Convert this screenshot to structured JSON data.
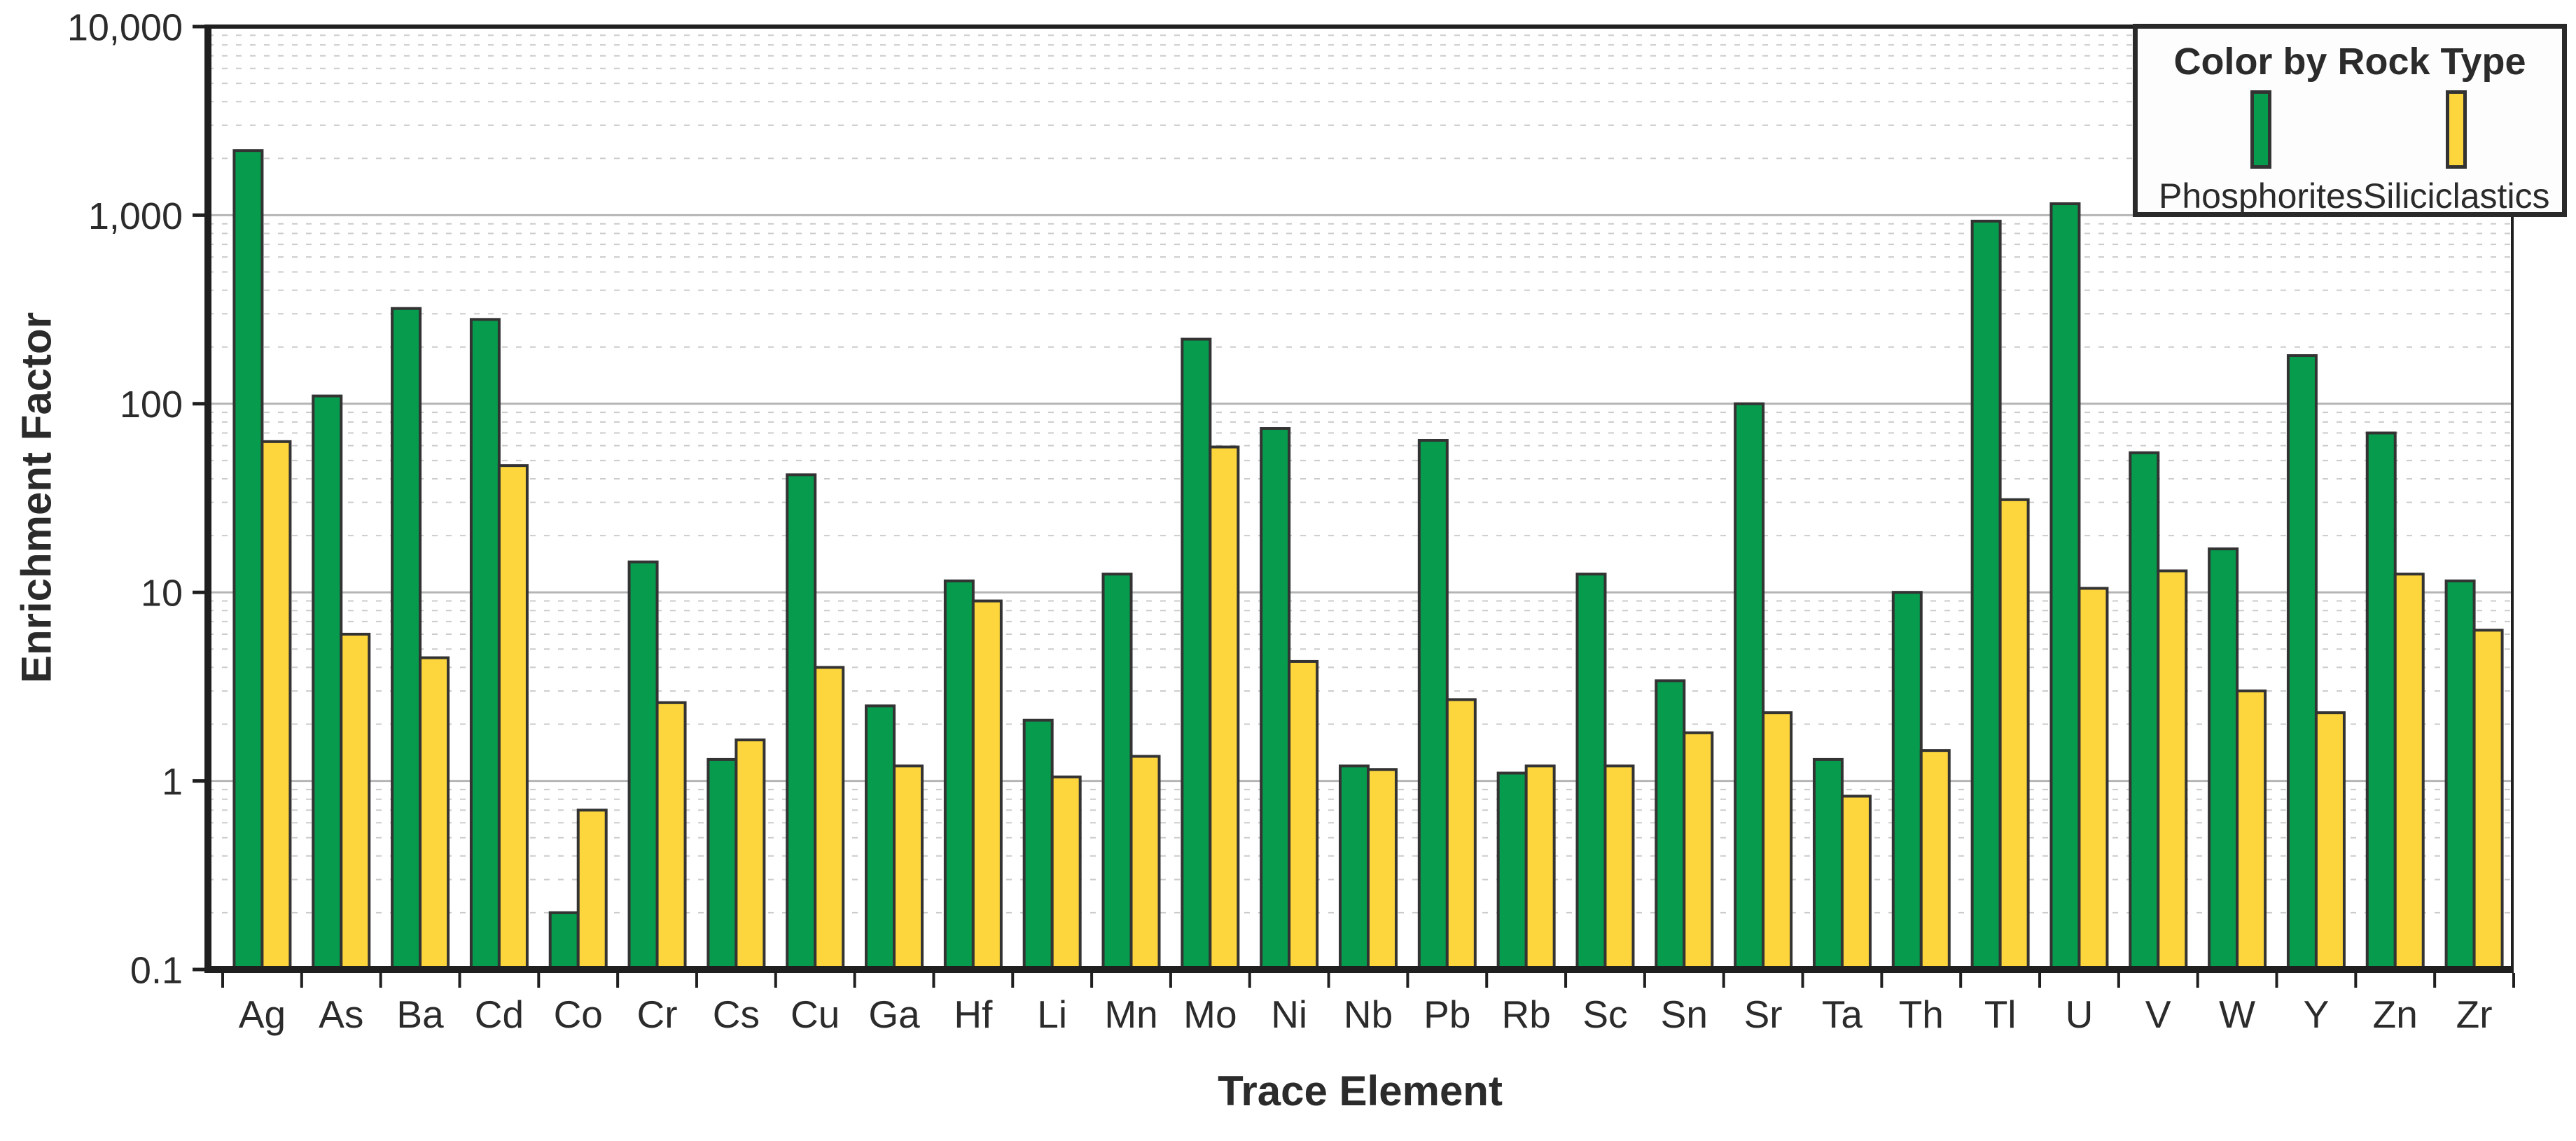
{
  "figure": {
    "y_axis_title": "Enrichment Factor",
    "x_axis_title": "Trace Element"
  },
  "legend": {
    "title": "Color by Rock Type",
    "entries": [
      {
        "label": "Phosphorites",
        "color": "#069B4D"
      },
      {
        "label": "Siliciclastics",
        "color": "#FCD63C"
      }
    ]
  },
  "chart_data": {
    "type": "bar",
    "subtype": "grouped-vertical",
    "title": "",
    "xlabel": "Trace Element",
    "ylabel": "Enrichment Factor",
    "y_scale": "log",
    "ylim": [
      0.1,
      10000
    ],
    "y_ticks": [
      {
        "value": 10000,
        "label": "10,000"
      },
      {
        "value": 1000,
        "label": "1,000"
      },
      {
        "value": 100,
        "label": "100"
      },
      {
        "value": 10,
        "label": "10"
      },
      {
        "value": 1,
        "label": "1"
      },
      {
        "value": 0.1,
        "label": "0.1"
      }
    ],
    "grid": {
      "major": "solid",
      "minor": "dotted"
    },
    "legend_position": "top-right",
    "categories": [
      "Ag",
      "As",
      "Ba",
      "Cd",
      "Co",
      "Cr",
      "Cs",
      "Cu",
      "Ga",
      "Hf",
      "Li",
      "Mn",
      "Mo",
      "Ni",
      "Nb",
      "Pb",
      "Rb",
      "Sc",
      "Sn",
      "Sr",
      "Ta",
      "Th",
      "Tl",
      "U",
      "V",
      "W",
      "Y",
      "Zn",
      "Zr"
    ],
    "series": [
      {
        "name": "Phosphorites",
        "color": "#069B4D",
        "values": [
          2200,
          110,
          320,
          280,
          0.2,
          14.5,
          1.3,
          42,
          2.5,
          11.5,
          2.1,
          12.5,
          220,
          74,
          1.2,
          64,
          1.1,
          12.5,
          3.4,
          100,
          1.3,
          10,
          930,
          1150,
          55,
          17,
          180,
          70,
          11.5
        ]
      },
      {
        "name": "Siliciclastics",
        "color": "#FCD63C",
        "values": [
          63,
          6,
          4.5,
          47,
          0.7,
          2.6,
          1.65,
          4,
          1.2,
          9,
          1.05,
          1.35,
          59,
          4.3,
          1.15,
          2.7,
          1.2,
          1.2,
          1.8,
          2.3,
          0.83,
          1.45,
          31,
          10.5,
          13,
          3,
          2.3,
          12.5,
          6.3
        ]
      }
    ],
    "style": {
      "bar_outline": "#333333",
      "major_grid_color": "#b5b5b5",
      "minor_grid_color": "#cbcbcb",
      "axis_color": "#1f1f1f",
      "plot_background": "#ffffff"
    }
  }
}
